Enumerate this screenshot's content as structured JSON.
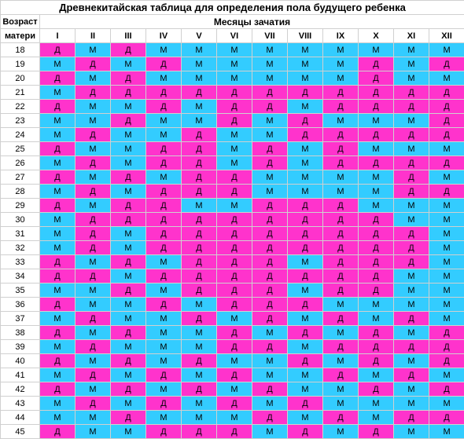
{
  "title": "Древнекитайская таблица для определения пола будущего ребенка",
  "header_age_line1": "Возраст",
  "header_age_line2": "матери",
  "header_months": "Месяцы зачатия",
  "months": [
    "I",
    "II",
    "III",
    "IV",
    "V",
    "VI",
    "VII",
    "VIII",
    "IX",
    "X",
    "XI",
    "XII"
  ],
  "ages": [
    18,
    19,
    20,
    21,
    22,
    23,
    24,
    25,
    26,
    27,
    28,
    29,
    30,
    31,
    32,
    33,
    34,
    35,
    36,
    37,
    38,
    39,
    40,
    41,
    42,
    43,
    44,
    45
  ],
  "cell_label_d": "Д",
  "cell_label_m": "М",
  "colors": {
    "d": "#ff33cc",
    "m": "#33ccff",
    "grid": "#d0d0d0"
  },
  "grid": [
    [
      "d",
      "m",
      "d",
      "m",
      "m",
      "m",
      "m",
      "m",
      "m",
      "m",
      "m",
      "m"
    ],
    [
      "m",
      "d",
      "m",
      "d",
      "m",
      "m",
      "m",
      "m",
      "m",
      "d",
      "m",
      "d"
    ],
    [
      "d",
      "m",
      "d",
      "m",
      "m",
      "m",
      "m",
      "m",
      "m",
      "d",
      "m",
      "m"
    ],
    [
      "m",
      "d",
      "d",
      "d",
      "d",
      "d",
      "d",
      "d",
      "d",
      "d",
      "d",
      "d"
    ],
    [
      "d",
      "m",
      "m",
      "d",
      "m",
      "d",
      "d",
      "m",
      "d",
      "d",
      "d",
      "d"
    ],
    [
      "m",
      "m",
      "d",
      "m",
      "m",
      "d",
      "m",
      "d",
      "m",
      "m",
      "m",
      "d"
    ],
    [
      "m",
      "d",
      "m",
      "m",
      "d",
      "m",
      "m",
      "d",
      "d",
      "d",
      "d",
      "d"
    ],
    [
      "d",
      "m",
      "m",
      "d",
      "d",
      "m",
      "d",
      "m",
      "d",
      "m",
      "m",
      "m"
    ],
    [
      "m",
      "d",
      "m",
      "d",
      "d",
      "m",
      "d",
      "m",
      "d",
      "d",
      "d",
      "d"
    ],
    [
      "d",
      "m",
      "d",
      "m",
      "d",
      "d",
      "m",
      "m",
      "m",
      "m",
      "d",
      "m"
    ],
    [
      "m",
      "d",
      "m",
      "d",
      "d",
      "d",
      "m",
      "m",
      "m",
      "m",
      "d",
      "d"
    ],
    [
      "d",
      "m",
      "d",
      "d",
      "m",
      "m",
      "d",
      "d",
      "d",
      "m",
      "m",
      "m"
    ],
    [
      "m",
      "d",
      "d",
      "d",
      "d",
      "d",
      "d",
      "d",
      "d",
      "d",
      "m",
      "m"
    ],
    [
      "m",
      "d",
      "m",
      "d",
      "d",
      "d",
      "d",
      "d",
      "d",
      "d",
      "d",
      "m"
    ],
    [
      "m",
      "d",
      "m",
      "d",
      "d",
      "d",
      "d",
      "d",
      "d",
      "d",
      "d",
      "m"
    ],
    [
      "d",
      "m",
      "d",
      "m",
      "d",
      "d",
      "d",
      "m",
      "d",
      "d",
      "d",
      "m"
    ],
    [
      "d",
      "d",
      "m",
      "d",
      "d",
      "d",
      "d",
      "d",
      "d",
      "d",
      "m",
      "m"
    ],
    [
      "m",
      "m",
      "d",
      "m",
      "d",
      "d",
      "d",
      "m",
      "d",
      "d",
      "m",
      "m"
    ],
    [
      "d",
      "m",
      "m",
      "d",
      "m",
      "d",
      "d",
      "d",
      "m",
      "m",
      "m",
      "m"
    ],
    [
      "m",
      "d",
      "m",
      "m",
      "d",
      "m",
      "d",
      "m",
      "d",
      "m",
      "d",
      "m"
    ],
    [
      "d",
      "m",
      "d",
      "m",
      "m",
      "d",
      "m",
      "d",
      "m",
      "d",
      "m",
      "d"
    ],
    [
      "m",
      "d",
      "m",
      "m",
      "m",
      "d",
      "d",
      "m",
      "d",
      "d",
      "d",
      "d"
    ],
    [
      "d",
      "m",
      "d",
      "m",
      "d",
      "m",
      "m",
      "d",
      "m",
      "d",
      "m",
      "d"
    ],
    [
      "m",
      "d",
      "m",
      "d",
      "m",
      "d",
      "m",
      "m",
      "d",
      "m",
      "d",
      "m"
    ],
    [
      "d",
      "m",
      "d",
      "m",
      "d",
      "m",
      "d",
      "m",
      "m",
      "d",
      "m",
      "d"
    ],
    [
      "m",
      "d",
      "m",
      "d",
      "m",
      "d",
      "m",
      "d",
      "m",
      "m",
      "m",
      "m"
    ],
    [
      "m",
      "m",
      "d",
      "m",
      "m",
      "m",
      "d",
      "m",
      "d",
      "m",
      "d",
      "d"
    ],
    [
      "d",
      "m",
      "m",
      "d",
      "d",
      "d",
      "m",
      "d",
      "m",
      "d",
      "m",
      "m"
    ]
  ]
}
